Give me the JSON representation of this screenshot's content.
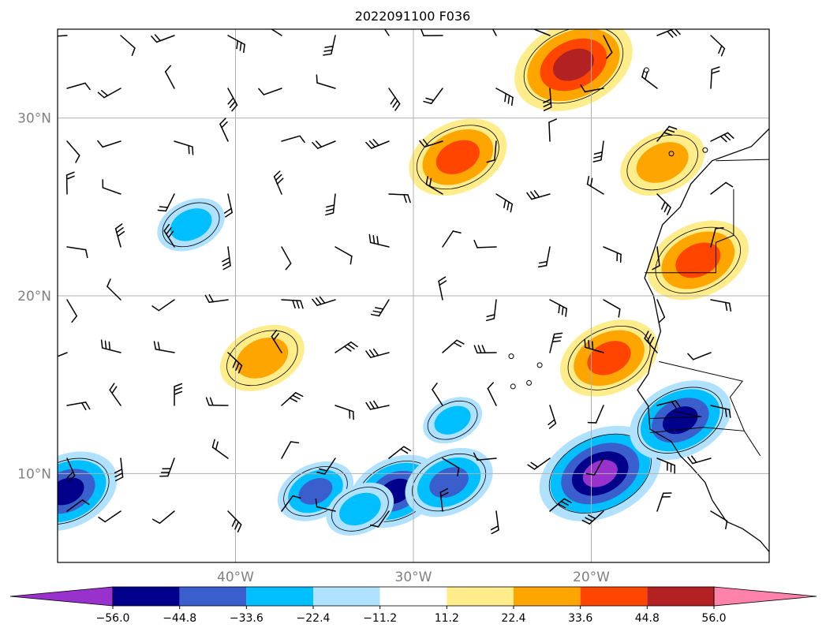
{
  "title": "2022091100 F036",
  "map": {
    "lon_range": [
      -50,
      -10
    ],
    "lat_range": [
      5,
      35
    ],
    "lat_ticks": [
      {
        "value": 30,
        "label": "30°N"
      },
      {
        "value": 20,
        "label": "20°N"
      },
      {
        "value": 10,
        "label": "10°N"
      }
    ],
    "lon_ticks": [
      {
        "value": -40,
        "label": "40°W"
      },
      {
        "value": -30,
        "label": "30°W"
      },
      {
        "value": -20,
        "label": "20°W"
      }
    ],
    "gridlines": true
  },
  "colorbar": {
    "colors": [
      "#9932cc",
      "#00008b",
      "#3a5fcd",
      "#00bfff",
      "#b0e2ff",
      "#ffffff",
      "#ffec8b",
      "#ffa500",
      "#ff4500",
      "#b22222",
      "#ff82ab"
    ],
    "tick_labels": [
      "−56.0",
      "−44.8",
      "−33.6",
      "−22.4",
      "−11.2",
      "11.2",
      "22.4",
      "33.6",
      "44.8",
      "56.0"
    ],
    "extend": "both"
  },
  "chart_data": {
    "type": "heatmap",
    "title": "2022091100 F036",
    "levels": [
      -56.0,
      -44.8,
      -33.6,
      -22.4,
      -11.2,
      11.2,
      22.4,
      33.6,
      44.8,
      56.0
    ],
    "anomaly_features": [
      {
        "lon": -21,
        "lat": 33,
        "peak": 50
      },
      {
        "lon": -27.5,
        "lat": 27.8,
        "peak": 38
      },
      {
        "lon": -16,
        "lat": 27.5,
        "peak": 30
      },
      {
        "lon": -14,
        "lat": 22,
        "peak": 40
      },
      {
        "lon": -19,
        "lat": 16.5,
        "peak": 38
      },
      {
        "lon": -38.5,
        "lat": 16.5,
        "peak": 30
      },
      {
        "lon": -42.5,
        "lat": 24,
        "peak": -20
      },
      {
        "lon": -19.5,
        "lat": 10,
        "peak": -52
      },
      {
        "lon": -15,
        "lat": 13,
        "peak": -40
      },
      {
        "lon": -49.5,
        "lat": 9,
        "peak": -40
      },
      {
        "lon": -31,
        "lat": 9,
        "peak": -35
      },
      {
        "lon": -28,
        "lat": 9.5,
        "peak": -32
      },
      {
        "lon": -35.5,
        "lat": 9,
        "peak": -25
      },
      {
        "lon": -33,
        "lat": 8,
        "peak": -20
      },
      {
        "lon": -27.8,
        "lat": 13,
        "peak": -15
      }
    ]
  }
}
